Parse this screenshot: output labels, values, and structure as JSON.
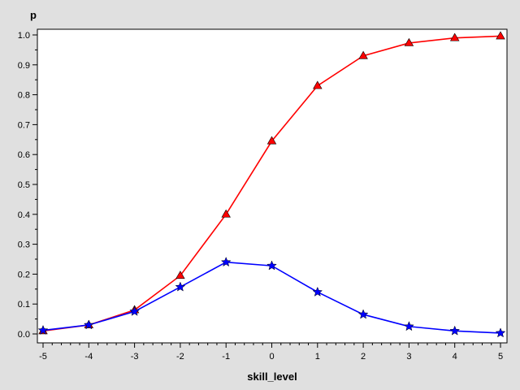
{
  "chart_data": {
    "type": "line",
    "title": "",
    "xlabel": "skill_level",
    "ylabel": "p",
    "xlim": [
      -5,
      5
    ],
    "ylim": [
      0,
      1.0
    ],
    "x_ticks": [
      "-5",
      "-4",
      "-3",
      "-2",
      "-1",
      "0",
      "1",
      "2",
      "3",
      "4",
      "5"
    ],
    "y_ticks": [
      "0.0",
      "0.1",
      "0.2",
      "0.3",
      "0.4",
      "0.5",
      "0.6",
      "0.7",
      "0.8",
      "0.9",
      "1.0"
    ],
    "grid": false,
    "x": [
      -5,
      -4,
      -3,
      -2,
      -1,
      0,
      1,
      2,
      3,
      4,
      5
    ],
    "series": [
      {
        "color": "#ff0000",
        "marker": "triangle",
        "values": [
          0.01,
          0.03,
          0.08,
          0.195,
          0.4,
          0.645,
          0.83,
          0.93,
          0.973,
          0.99,
          0.996
        ]
      },
      {
        "color": "#0000ff",
        "marker": "star",
        "values": [
          0.012,
          0.03,
          0.075,
          0.157,
          0.24,
          0.228,
          0.14,
          0.065,
          0.025,
          0.01,
          0.003
        ]
      }
    ]
  }
}
